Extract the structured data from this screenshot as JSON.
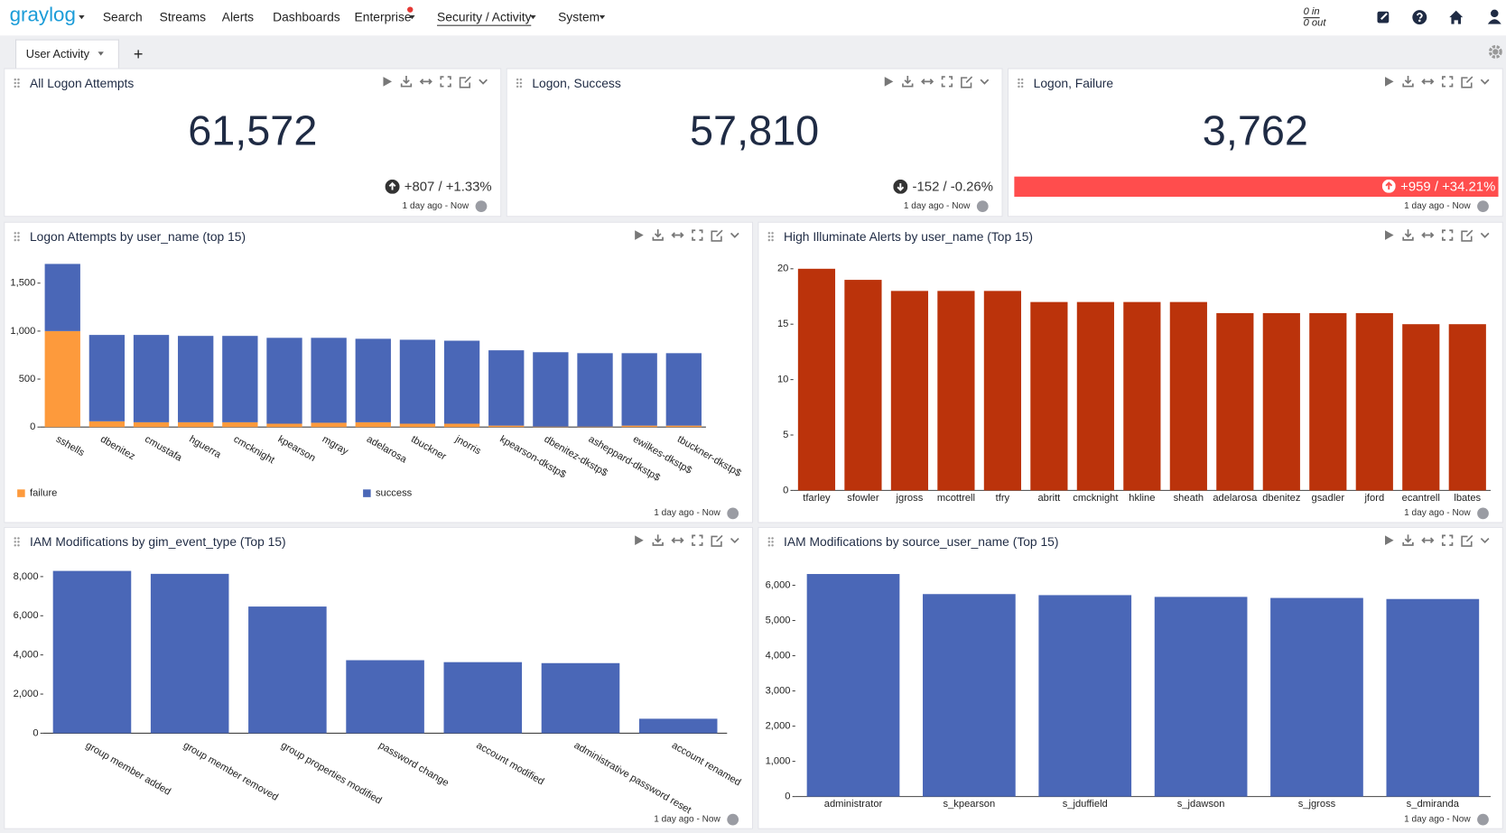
{
  "nav": {
    "logo": "graylog",
    "items": [
      "Search",
      "Streams",
      "Alerts",
      "Dashboards",
      "Enterprise",
      "Security / Activity",
      "System"
    ],
    "throughput_in": "0 in",
    "throughput_out": "0 out"
  },
  "tabs": {
    "items": [
      "User Activity"
    ],
    "add": "+"
  },
  "widgets": [
    {
      "title": "All Logon Attempts",
      "value": "61,572",
      "delta": "+807 / +1.33%",
      "time": "1 day ago - Now"
    },
    {
      "title": "Logon, Success",
      "value": "57,810",
      "delta": "-152 / -0.26%",
      "time": "1 day ago - Now"
    },
    {
      "title": "Logon, Failure",
      "value": "3,762",
      "delta": "+959 / +34.21%",
      "time": "1 day ago - Now"
    }
  ],
  "chart_data": [
    {
      "type": "bar",
      "stacked": true,
      "title": "Logon Attempts by user_name (top 15)",
      "time": "1 day ago - Now",
      "categories": [
        "sshells",
        "dbenitez",
        "cmustafa",
        "hguerra",
        "cmcknight",
        "kpearson",
        "mgray",
        "adelarosa",
        "tbuckner",
        "jnorris",
        "kpearson-dkstp$",
        "dbenitez-dkstp$",
        "asheppard-dkstp$",
        "ewilkes-dkstp$",
        "tbuckner-dkstp$"
      ],
      "series": [
        {
          "name": "failure",
          "color": "#fd9a3c",
          "values": [
            1000,
            60,
            50,
            50,
            50,
            35,
            45,
            50,
            35,
            35,
            15,
            5,
            5,
            15,
            15
          ]
        },
        {
          "name": "success",
          "color": "#4a67b7",
          "values": [
            700,
            900,
            910,
            900,
            900,
            895,
            885,
            870,
            875,
            865,
            785,
            775,
            765,
            755,
            755
          ]
        }
      ],
      "ylim": [
        0,
        1700
      ],
      "yticks": [
        0,
        500,
        {
          "value": 1000,
          "label": "1,000"
        },
        {
          "value": 1500,
          "label": "1,500"
        }
      ]
    },
    {
      "type": "bar",
      "title": "High Illuminate Alerts by user_name (Top 15)",
      "time": "1 day ago - Now",
      "categories": [
        "tfarley",
        "sfowler",
        "jgross",
        "mcottrell",
        "tfry",
        "abritt",
        "cmcknight",
        "hkline",
        "sheath",
        "adelarosa",
        "dbenitez",
        "gsadler",
        "jford",
        "ecantrell",
        "lbates"
      ],
      "values": [
        20,
        19,
        18,
        18,
        18,
        17,
        17,
        17,
        17,
        16,
        16,
        16,
        16,
        15,
        15
      ],
      "color": "#bb330b",
      "ylim": [
        0,
        21
      ],
      "yticks": [
        0,
        5,
        10,
        15,
        20
      ]
    },
    {
      "type": "bar",
      "title": "IAM Modifications by gim_event_type (Top 15)",
      "time": "1 day ago - Now",
      "categories": [
        "group member added",
        "group member removed",
        "group properties modified",
        "password change",
        "account modified",
        "administrative password reset",
        "account renamed"
      ],
      "values": [
        8290,
        8140,
        6470,
        3730,
        3630,
        3580,
        740
      ],
      "color": "#4a67b7",
      "ylim": [
        0,
        8500
      ],
      "yticks": [
        0,
        {
          "value": 2000,
          "label": "2,000"
        },
        {
          "value": 4000,
          "label": "4,000"
        },
        {
          "value": 6000,
          "label": "6,000"
        },
        {
          "value": 8000,
          "label": "8,000"
        }
      ]
    },
    {
      "type": "bar",
      "title": "IAM Modifications by source_user_name (Top 15)",
      "time": "1 day ago - Now",
      "categories": [
        "administrator",
        "s_kpearson",
        "s_jduffield",
        "s_jdawson",
        "s_jgross",
        "s_dmiranda"
      ],
      "values": [
        6320,
        5750,
        5720,
        5670,
        5640,
        5610
      ],
      "color": "#4a67b7",
      "ylim": [
        0,
        6500
      ],
      "yticks": [
        0,
        {
          "value": 1000,
          "label": "1,000"
        },
        {
          "value": 2000,
          "label": "2,000"
        },
        {
          "value": 3000,
          "label": "3,000"
        },
        {
          "value": 4000,
          "label": "4,000"
        },
        {
          "value": 5000,
          "label": "5,000"
        },
        {
          "value": 6000,
          "label": "6,000"
        }
      ]
    }
  ]
}
